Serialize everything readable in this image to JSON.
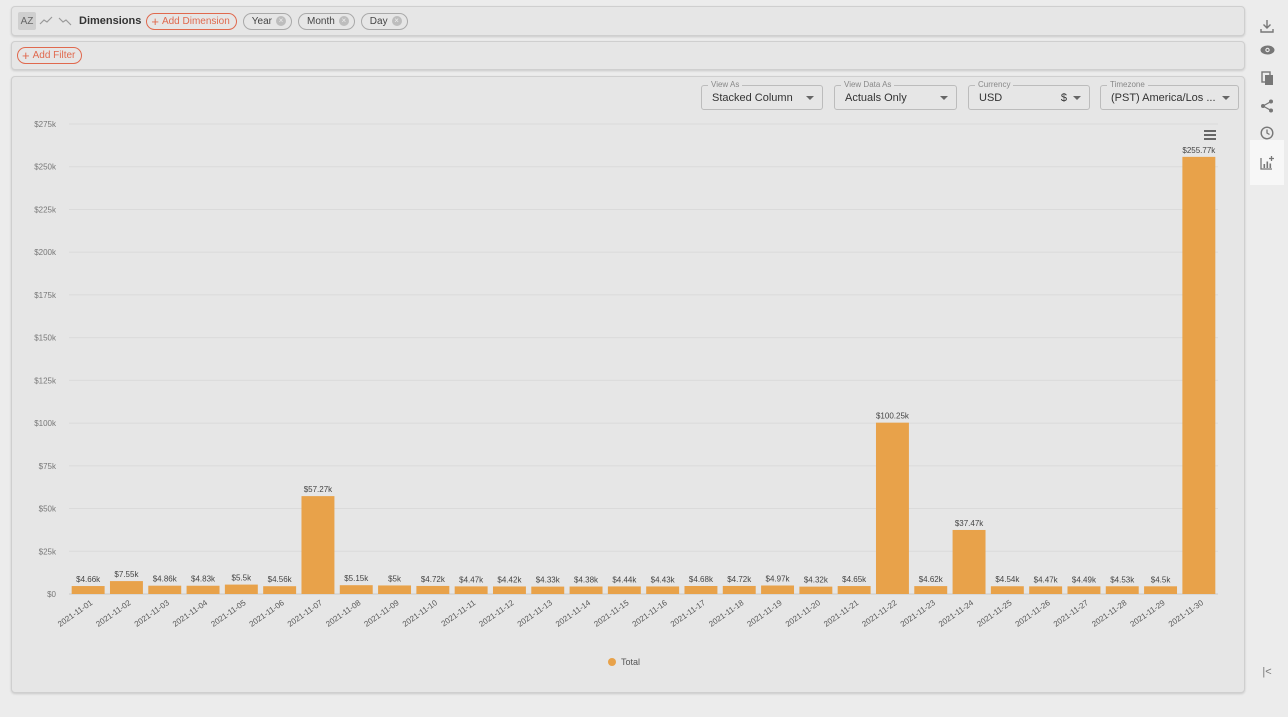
{
  "toolbar": {
    "sort_label": "AZ",
    "dimensions_label": "Dimensions",
    "add_dimension_label": "Add Dimension",
    "chips": [
      {
        "label": "Year"
      },
      {
        "label": "Month"
      },
      {
        "label": "Day"
      }
    ],
    "add_filter_label": "Add Filter"
  },
  "controls": {
    "view_as": {
      "label": "View As",
      "value": "Stacked Column"
    },
    "view_data_as": {
      "label": "View Data As",
      "value": "Actuals Only"
    },
    "currency": {
      "label": "Currency",
      "value": "USD",
      "symbol": "$"
    },
    "timezone": {
      "label": "Timezone",
      "value": "(PST) America/Los ..."
    }
  },
  "side_icons": [
    {
      "name": "download-icon"
    },
    {
      "name": "eye-icon"
    },
    {
      "name": "copy-icon"
    },
    {
      "name": "share-icon"
    },
    {
      "name": "clock-icon"
    },
    {
      "name": "add-chart-icon"
    }
  ],
  "collapse_label": "|<",
  "colors": {
    "bar": "#e8a24a",
    "accent": "#e0694e"
  },
  "chart_data": {
    "type": "bar",
    "categories": [
      "2021-11-01",
      "2021-11-02",
      "2021-11-03",
      "2021-11-04",
      "2021-11-05",
      "2021-11-06",
      "2021-11-07",
      "2021-11-08",
      "2021-11-09",
      "2021-11-10",
      "2021-11-11",
      "2021-11-12",
      "2021-11-13",
      "2021-11-14",
      "2021-11-15",
      "2021-11-16",
      "2021-11-17",
      "2021-11-18",
      "2021-11-19",
      "2021-11-20",
      "2021-11-21",
      "2021-11-22",
      "2021-11-23",
      "2021-11-24",
      "2021-11-25",
      "2021-11-26",
      "2021-11-27",
      "2021-11-28",
      "2021-11-29",
      "2021-11-30"
    ],
    "series": [
      {
        "name": "Total",
        "values": [
          4660,
          7550,
          4860,
          4830,
          5500,
          4560,
          57270,
          5150,
          5000,
          4720,
          4470,
          4420,
          4330,
          4380,
          4440,
          4430,
          4680,
          4720,
          4970,
          4320,
          4650,
          100250,
          4620,
          37470,
          4540,
          4470,
          4490,
          4530,
          4500,
          255770
        ],
        "labels": [
          "$4.66k",
          "$7.55k",
          "$4.86k",
          "$4.83k",
          "$5.5k",
          "$4.56k",
          "$57.27k",
          "$5.15k",
          "$5k",
          "$4.72k",
          "$4.47k",
          "$4.42k",
          "$4.33k",
          "$4.38k",
          "$4.44k",
          "$4.43k",
          "$4.68k",
          "$4.72k",
          "$4.97k",
          "$4.32k",
          "$4.65k",
          "$100.25k",
          "$4.62k",
          "$37.47k",
          "$4.54k",
          "$4.47k",
          "$4.49k",
          "$4.53k",
          "$4.5k",
          "$255.77k"
        ]
      }
    ],
    "yticks": [
      0,
      25000,
      50000,
      75000,
      100000,
      125000,
      150000,
      175000,
      200000,
      225000,
      250000,
      275000
    ],
    "ytick_labels": [
      "$0",
      "$25k",
      "$50k",
      "$75k",
      "$100k",
      "$125k",
      "$150k",
      "$175k",
      "$200k",
      "$225k",
      "$250k",
      "$275k"
    ],
    "ylim": [
      0,
      275000
    ],
    "legend": {
      "position": "bottom",
      "entries": [
        "Total"
      ]
    },
    "grid": true
  }
}
